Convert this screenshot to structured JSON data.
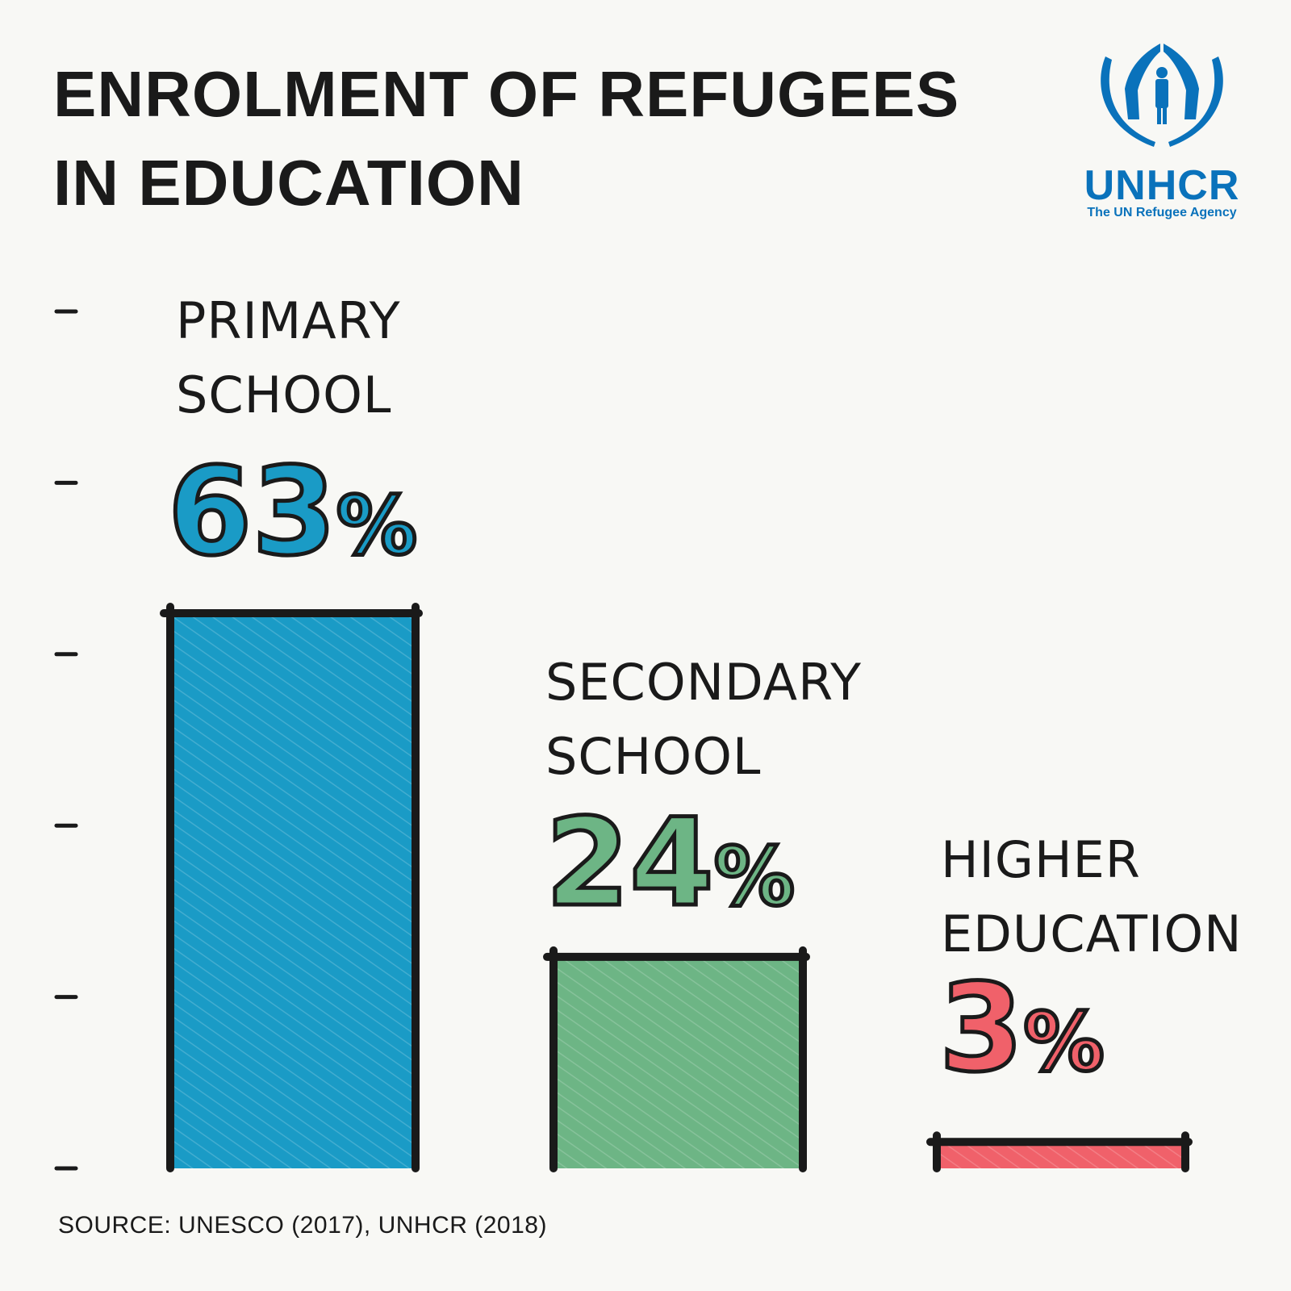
{
  "title_lines": [
    "ENROLMENT OF REFUGEES",
    "IN EDUCATION"
  ],
  "logo": {
    "text": "UNHCR",
    "tagline": "The UN Refugee Agency",
    "color": "#0a72bb"
  },
  "source": "SOURCE: UNESCO (2017), UNHCR (2018)",
  "chart_data": {
    "type": "bar",
    "title": "ENROLMENT OF REFUGEES IN EDUCATION",
    "categories": [
      "PRIMARY SCHOOL",
      "SECONDARY SCHOOL",
      "HIGHER EDUCATION"
    ],
    "category_lines": [
      [
        "PRIMARY",
        "SCHOOL"
      ],
      [
        "SECONDARY",
        "SCHOOL"
      ],
      [
        "HIGHER",
        "EDUCATION"
      ]
    ],
    "values": [
      63,
      24,
      3
    ],
    "value_labels": [
      "63",
      "24",
      "3"
    ],
    "unit": "%",
    "colors": [
      "#1a9bc6",
      "#6db585",
      "#f0616a"
    ],
    "ylim": [
      0,
      63
    ],
    "tick_count": 6,
    "xlabel": "",
    "ylabel": ""
  }
}
